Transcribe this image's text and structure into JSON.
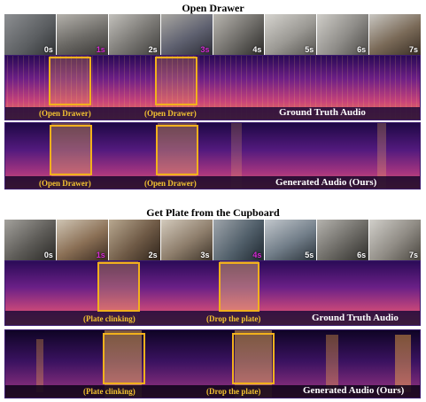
{
  "figure": {
    "panel1": {
      "title": "Open Drawer",
      "frame_labels": [
        "0s",
        "1s",
        "2s",
        "3s",
        "4s",
        "5s",
        "6s",
        "7s"
      ],
      "highlighted_frames": [
        1,
        3
      ],
      "gt_audio_label": "Ground Truth Audio",
      "gen_audio_label": "Generated Audio (Ours)",
      "gt_events": [
        "(Open Drawer)",
        "(Open Drawer)"
      ],
      "gen_events": [
        "(Open Drawer)",
        "(Open Drawer)"
      ]
    },
    "panel2": {
      "title": "Get Plate from the Cupboard",
      "frame_labels": [
        "0s",
        "1s",
        "2s",
        "3s",
        "4s",
        "5s",
        "6s",
        "7s"
      ],
      "highlighted_frames": [
        1,
        4
      ],
      "gt_audio_label": "Ground Truth Audio",
      "gen_audio_label": "Generated Audio (Ours)",
      "gt_events": [
        "(Plate clinking)",
        "(Drop the plate)"
      ],
      "gen_events": [
        "(Plate clinking)",
        "(Drop the plate)"
      ]
    },
    "colors": {
      "highlight_box": "#f2b11c",
      "event_text": "#f5c431",
      "accent_time": "#d62ad6"
    }
  }
}
